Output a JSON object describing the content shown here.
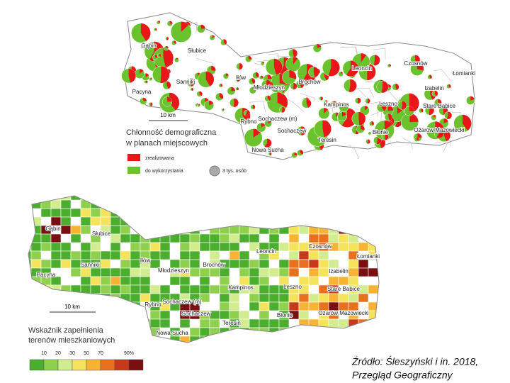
{
  "top_map": {
    "places": [
      "Gąbin",
      "Słubice",
      "Sanniki",
      "Pacyna",
      "Iłów",
      "Młodzieszyn",
      "Brochów",
      "Leoncin",
      "Czosnów",
      "Łomianki",
      "Izabelin",
      "Kampinos",
      "Leszno",
      "Stare Babice",
      "Sochaczew (m)",
      "Sochaczew",
      "Rybno",
      "Teresin",
      "Błonie",
      "Ożarów Mazowiecki",
      "Nowa Sucha"
    ],
    "scale": "10 km",
    "legend": {
      "title": [
        "Chłonność demograficzna",
        "w planach miejscowych"
      ],
      "items": [
        "zrealizowana",
        "do wykorzystania"
      ],
      "size": "3 tys. osób"
    }
  },
  "bottom_map": {
    "places": [
      "Gąbin",
      "Słubice",
      "Sanniki",
      "Pacyna",
      "Iłów",
      "Młodzieszyn",
      "Brochów",
      "Leoncin",
      "Czosnów",
      "Łomianki",
      "Izabelin",
      "Kampinos",
      "Leszno",
      "Stare Babice",
      "Sochaczew (m)",
      "Sochaczew",
      "Rybno",
      "Teresin",
      "Błonie",
      "Ożarów Mazowiecki",
      "Nowa Sucha"
    ],
    "scale": "10 km",
    "legend": {
      "title": [
        "Wskaźnik zapełnienia",
        "terenów mieszkaniowych"
      ],
      "ticks": [
        "10",
        "20",
        "30",
        "50",
        "70",
        "90%"
      ]
    }
  },
  "source": [
    "Źródło: Śleszyński  i in. 2018,",
    "Przegląd Geograficzny"
  ]
}
